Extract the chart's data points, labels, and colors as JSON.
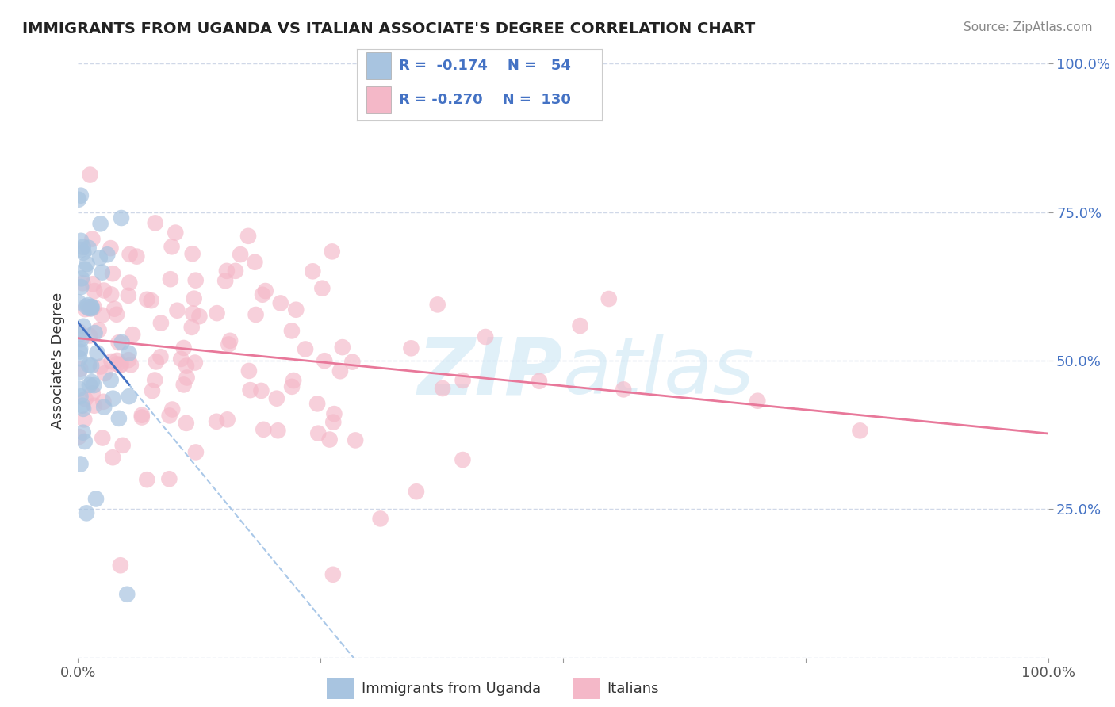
{
  "title": "IMMIGRANTS FROM UGANDA VS ITALIAN ASSOCIATE'S DEGREE CORRELATION CHART",
  "source": "Source: ZipAtlas.com",
  "ylabel": "Associate's Degree",
  "watermark": "ZIPatlas",
  "legend_labels": [
    "Immigrants from Uganda",
    "Italians"
  ],
  "legend_R1": "-0.174",
  "legend_N1": "54",
  "legend_R2": "-0.270",
  "legend_N2": "130",
  "color1": "#a8c4e0",
  "color2": "#f4b8c8",
  "line_color1": "#4472c4",
  "line_color2": "#e8789a",
  "dash_color": "#aac8e8",
  "text_color_blue": "#4472c4",
  "background_color": "#ffffff",
  "grid_color": "#d0d8e8",
  "title_color": "#222222",
  "source_color": "#888888",
  "xlim": [
    0,
    100
  ],
  "ylim": [
    0,
    100
  ],
  "x1_scale": 0.1,
  "x2_scale": 1.0,
  "seed1": 42,
  "seed2": 99
}
